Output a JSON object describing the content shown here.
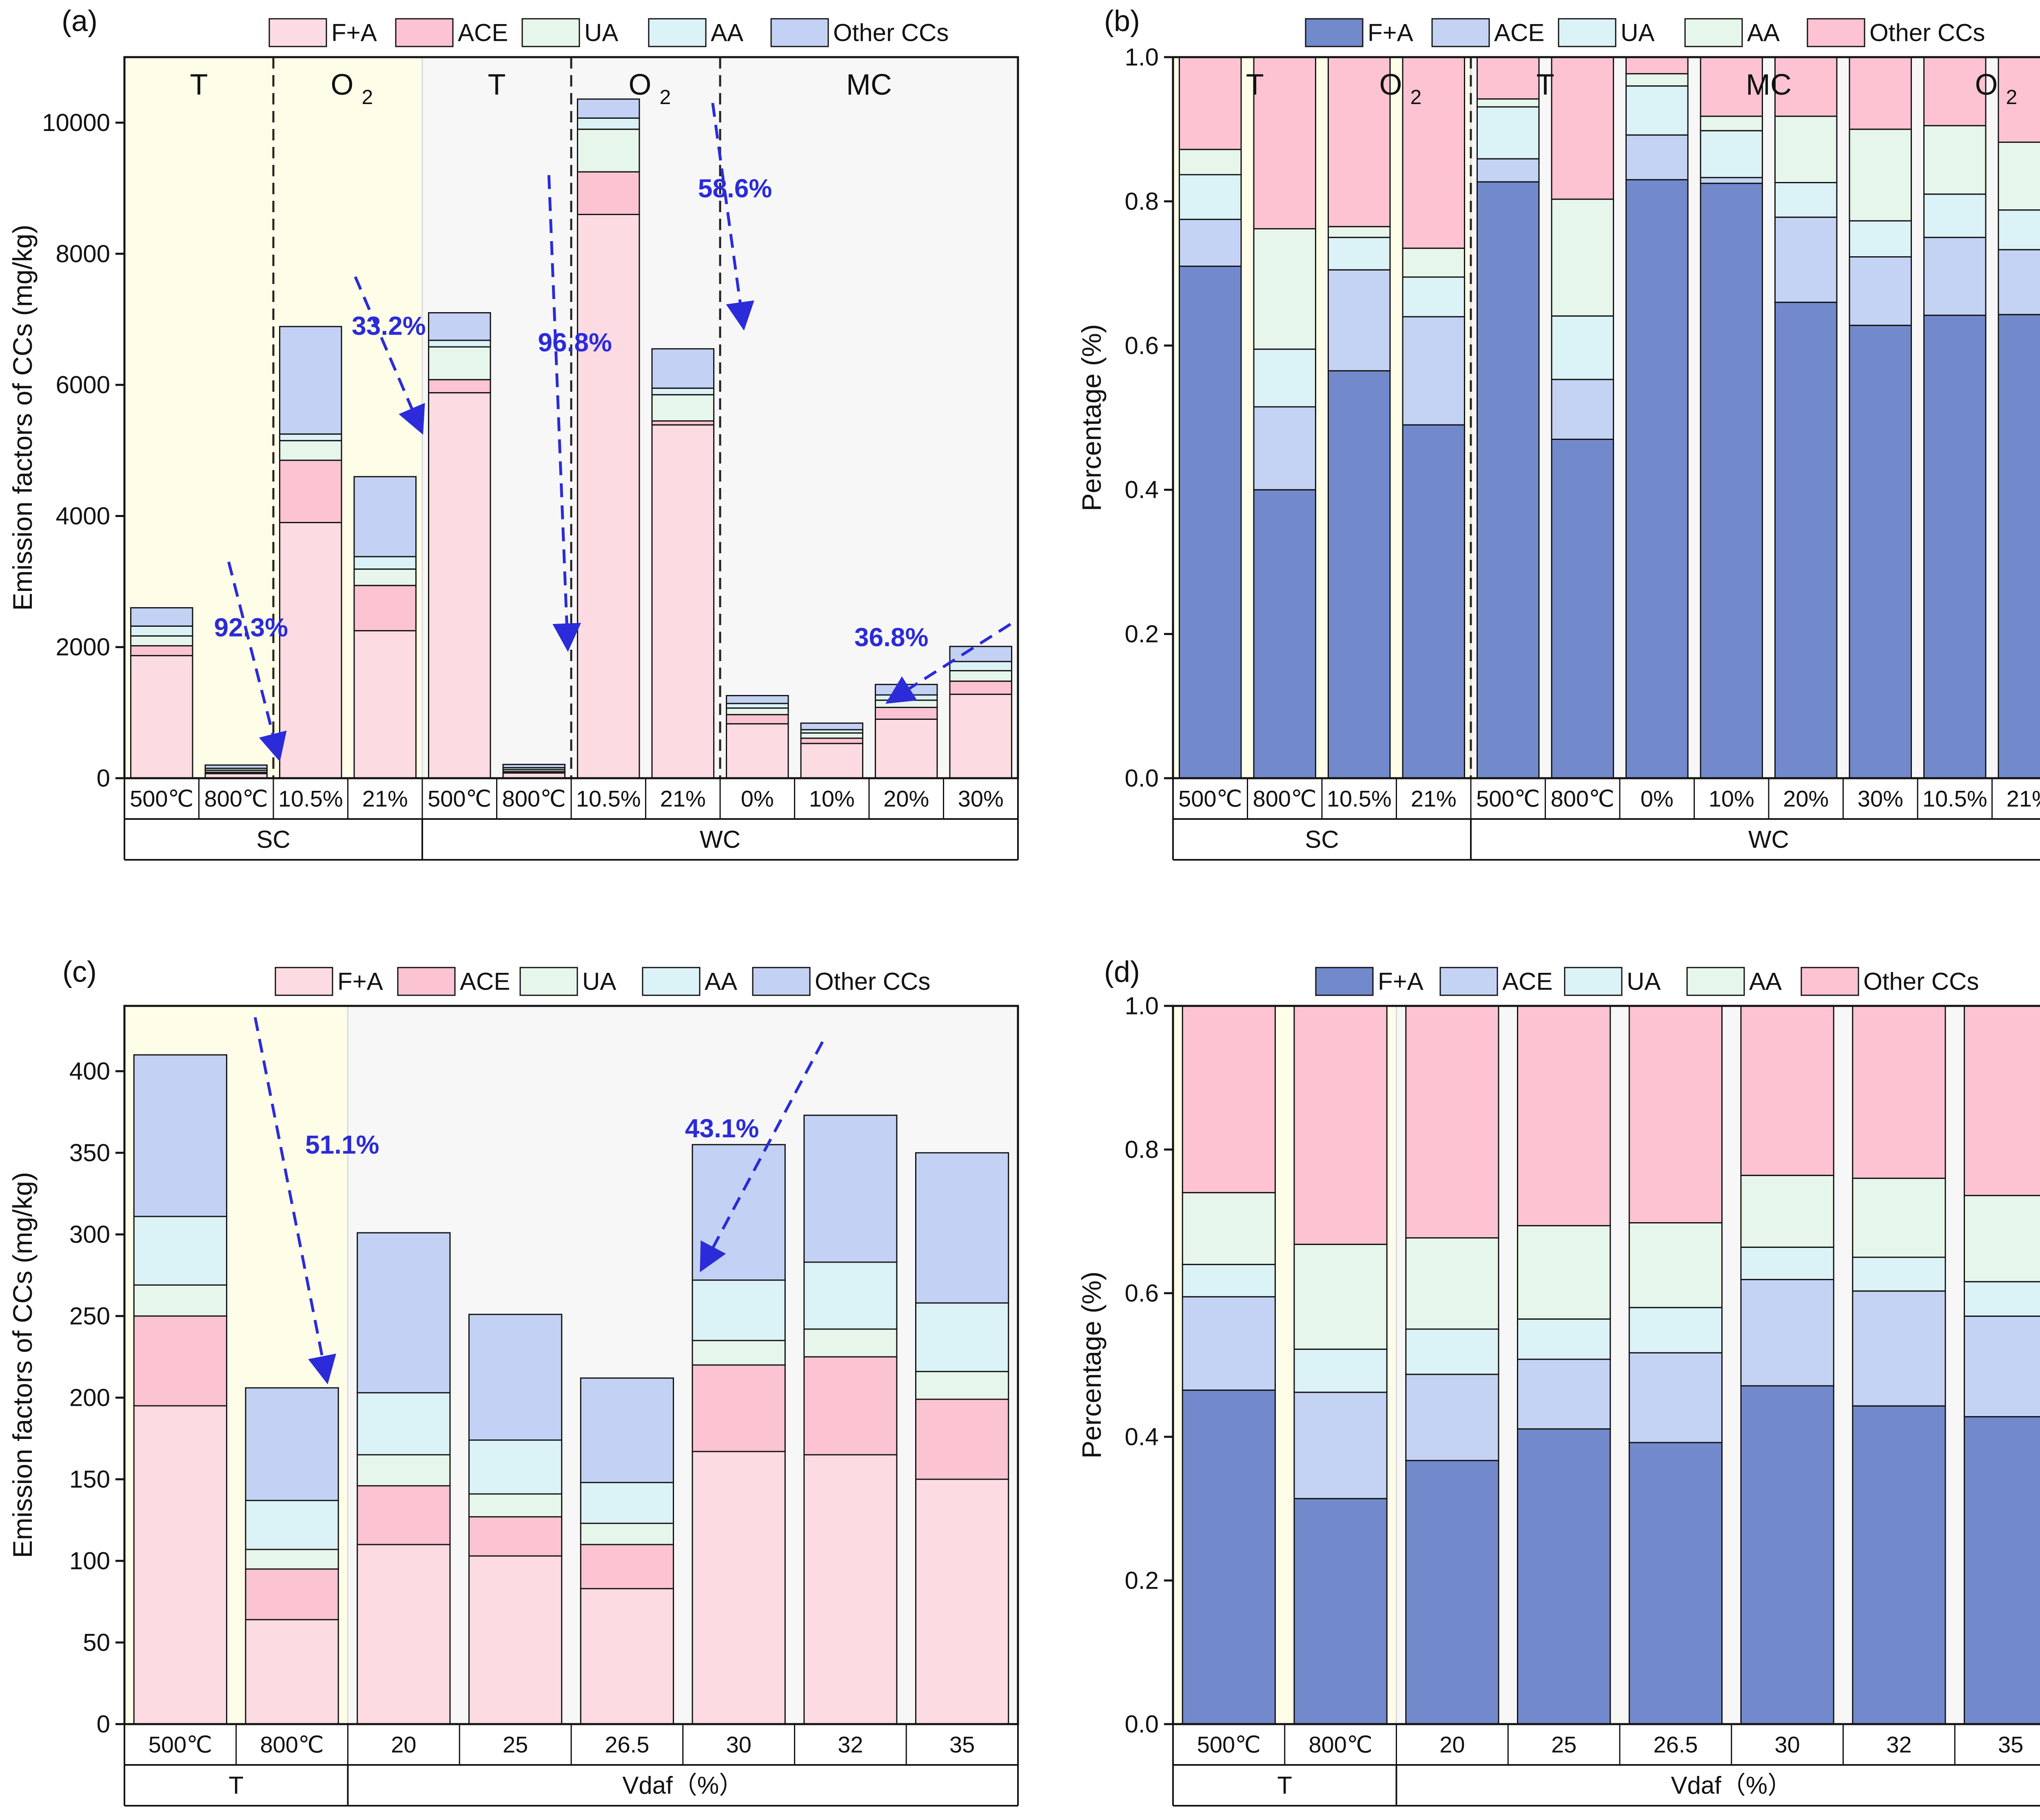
{
  "colors": {
    "panel_a": {
      "F+A": "#fddbe2",
      "ACE": "#fcc3d2",
      "UA": "#e7f6ea",
      "AA": "#dbf2f7",
      "Other CCs": "#c3d2f4"
    },
    "panel_b": {
      "F+A": "#7289cc",
      "ACE": "#c4d3f4",
      "UA": "#dbf2f7",
      "AA": "#e7f6ea",
      "Other CCs": "#fdc3d2"
    },
    "bg_yellow": "#fdfde8",
    "bg_gray": "#f7f7f7",
    "arrow": "#2b2bd9"
  },
  "chart_data": [
    {
      "id": "a",
      "panel_label": "(a)",
      "type": "bar",
      "stacked": true,
      "ylabel": "Emission factors of CCs (mg/kg)",
      "ylim": [
        0,
        11000
      ],
      "yticks": [
        0,
        2000,
        4000,
        6000,
        8000,
        10000
      ],
      "legend": [
        "F+A",
        "ACE",
        "UA",
        "AA",
        "Other CCs"
      ],
      "legend_position": "top",
      "categories": [
        "500℃",
        "800℃",
        "10.5%",
        "21%",
        "500℃",
        "800℃",
        "10.5%",
        "21%",
        "0%",
        "10%",
        "20%",
        "30%"
      ],
      "groups": [
        {
          "label": "SC",
          "start": 0,
          "end": 3
        },
        {
          "label": "WC",
          "start": 4,
          "end": 11
        }
      ],
      "regions": [
        {
          "label": "T",
          "start": 0,
          "end": 1,
          "bg": "yellow"
        },
        {
          "label": "O",
          "sub": "2",
          "start": 2,
          "end": 3,
          "bg": "yellow"
        },
        {
          "label": "T",
          "start": 4,
          "end": 5,
          "bg": "gray"
        },
        {
          "label": "O",
          "sub": "2",
          "start": 6,
          "end": 7,
          "bg": "gray"
        },
        {
          "label": "MC",
          "start": 8,
          "end": 11,
          "bg": "gray"
        }
      ],
      "dividers": [
        2,
        6,
        8
      ],
      "series": [
        {
          "name": "F+A",
          "values": [
            1870,
            70,
            3900,
            2250,
            5880,
            80,
            8600,
            5390,
            830,
            530,
            900,
            1280
          ]
        },
        {
          "name": "ACE",
          "values": [
            150,
            20,
            950,
            690,
            200,
            20,
            650,
            60,
            140,
            80,
            180,
            200
          ]
        },
        {
          "name": "UA",
          "values": [
            150,
            30,
            300,
            250,
            500,
            30,
            650,
            400,
            100,
            80,
            110,
            160
          ]
        },
        {
          "name": "AA",
          "values": [
            150,
            30,
            100,
            190,
            100,
            30,
            170,
            100,
            70,
            50,
            80,
            140
          ]
        },
        {
          "name": "Other CCs",
          "values": [
            280,
            50,
            1640,
            1220,
            420,
            50,
            290,
            600,
            120,
            100,
            160,
            230
          ]
        }
      ],
      "annotations": [
        {
          "text": "92.3%",
          "x": 1.2,
          "y": 2300,
          "x1": 0.9,
          "y1": 3300,
          "x2": 1.55,
          "y2": 420
        },
        {
          "text": "33.2%",
          "x": 3.05,
          "y": 6900,
          "x1": 2.6,
          "y1": 7650,
          "x2": 3.45,
          "y2": 5400
        },
        {
          "text": "96.8%",
          "x": 5.55,
          "y": 6650,
          "x1": 5.2,
          "y1": 9200,
          "x2": 5.45,
          "y2": 2100
        },
        {
          "text": "58.6%",
          "x": 7.7,
          "y": 9000,
          "x1": 7.4,
          "y1": 10300,
          "x2": 7.8,
          "y2": 7000
        },
        {
          "text": "36.8%",
          "x": 9.8,
          "y": 2150,
          "x1": 11.4,
          "y1": 2350,
          "x2": 9.85,
          "y2": 1230
        }
      ]
    },
    {
      "id": "b",
      "panel_label": "(b)",
      "type": "bar",
      "stacked": true,
      "ylabel": "Percentage (%)",
      "ylim": [
        0,
        1
      ],
      "yticks": [
        0.0,
        0.2,
        0.4,
        0.6,
        0.8,
        1.0
      ],
      "legend": [
        "F+A",
        "ACE",
        "UA",
        "AA",
        "Other CCs"
      ],
      "legend_position": "top",
      "categories": [
        "500℃",
        "800℃",
        "10.5%",
        "21%",
        "500℃",
        "800℃",
        "0%",
        "10%",
        "20%",
        "30%",
        "10.5%",
        "21%"
      ],
      "groups": [
        {
          "label": "SC",
          "start": 0,
          "end": 3
        },
        {
          "label": "WC",
          "start": 4,
          "end": 11
        }
      ],
      "regions": [
        {
          "label": "T",
          "start": 0,
          "end": 1,
          "bg": "yellow",
          "label_x": 0.6
        },
        {
          "label": "O",
          "sub": "2",
          "start": 2,
          "end": 3,
          "bg": "yellow",
          "label_x": 2.5
        },
        {
          "label": "T",
          "start": 4,
          "end": 5,
          "bg": "gray",
          "label_x": 4.5
        },
        {
          "label": "MC",
          "start": 6,
          "end": 9,
          "bg": "gray",
          "label_x": 7.5
        },
        {
          "label": "O",
          "sub": "2",
          "start": 10,
          "end": 11,
          "bg": "gray",
          "label_x": 10.5
        }
      ],
      "dividers": [
        4
      ],
      "series": [
        {
          "name": "F+A",
          "values": [
            0.71,
            0.4,
            0.565,
            0.49,
            0.827,
            0.47,
            0.83,
            0.825,
            0.66,
            0.628,
            0.642,
            0.643
          ]
        },
        {
          "name": "ACE",
          "values": [
            0.065,
            0.115,
            0.14,
            0.15,
            0.032,
            0.083,
            0.062,
            0.008,
            0.118,
            0.095,
            0.108,
            0.09
          ]
        },
        {
          "name": "UA",
          "values": [
            0.062,
            0.08,
            0.045,
            0.055,
            0.072,
            0.088,
            0.068,
            0.065,
            0.048,
            0.05,
            0.06,
            0.055
          ]
        },
        {
          "name": "AA",
          "values": [
            0.035,
            0.167,
            0.015,
            0.04,
            0.011,
            0.162,
            0.017,
            0.02,
            0.092,
            0.127,
            0.095,
            0.094
          ]
        },
        {
          "name": "Other CCs",
          "values": [
            0.128,
            0.238,
            0.235,
            0.265,
            0.058,
            0.197,
            0.023,
            0.082,
            0.082,
            0.1,
            0.095,
            0.118
          ]
        }
      ]
    },
    {
      "id": "c",
      "panel_label": "(c)",
      "type": "bar",
      "stacked": true,
      "ylabel": "Emission factors of CCs (mg/kg)",
      "ylim": [
        0,
        440
      ],
      "yticks": [
        0,
        50,
        100,
        150,
        200,
        250,
        300,
        350,
        400
      ],
      "legend": [
        "F+A",
        "ACE",
        "UA",
        "AA",
        "Other CCs"
      ],
      "legend_position": "top",
      "categories": [
        "500℃",
        "800℃",
        "20",
        "25",
        "26.5",
        "30",
        "32",
        "35"
      ],
      "groups": [
        {
          "label": "T",
          "start": 0,
          "end": 1
        },
        {
          "label": "Vdaf（%）",
          "start": 2,
          "end": 7
        }
      ],
      "regions": [
        {
          "label": "",
          "start": 0,
          "end": 1,
          "bg": "yellow"
        },
        {
          "label": "",
          "start": 2,
          "end": 7,
          "bg": "gray"
        }
      ],
      "dividers": [],
      "series": [
        {
          "name": "F+A",
          "values": [
            195,
            64,
            110,
            103,
            83,
            167,
            165,
            150
          ]
        },
        {
          "name": "ACE",
          "values": [
            55,
            31,
            36,
            24,
            27,
            53,
            60,
            49
          ]
        },
        {
          "name": "UA",
          "values": [
            19,
            12,
            19,
            14,
            13,
            15,
            17,
            17
          ]
        },
        {
          "name": "AA",
          "values": [
            42,
            30,
            38,
            33,
            25,
            37,
            41,
            42
          ]
        },
        {
          "name": "Other CCs",
          "values": [
            99,
            69,
            98,
            77,
            64,
            83,
            90,
            92
          ]
        }
      ],
      "annotations": [
        {
          "text": "51.1%",
          "x": 1.45,
          "y": 355,
          "x1": 0.67,
          "y1": 433,
          "x2": 1.3,
          "y2": 215
        },
        {
          "text": "43.1%",
          "x": 4.85,
          "y": 365,
          "x1": 5.75,
          "y1": 418,
          "x2": 4.7,
          "y2": 283
        }
      ]
    },
    {
      "id": "d",
      "panel_label": "(d)",
      "type": "bar",
      "stacked": true,
      "ylabel": "Percentage (%)",
      "ylim": [
        0,
        1
      ],
      "yticks": [
        0.0,
        0.2,
        0.4,
        0.6,
        0.8,
        1.0
      ],
      "legend": [
        "F+A",
        "ACE",
        "UA",
        "AA",
        "Other CCs"
      ],
      "legend_position": "top",
      "categories": [
        "500℃",
        "800℃",
        "20",
        "25",
        "26.5",
        "30",
        "32",
        "35"
      ],
      "groups": [
        {
          "label": "T",
          "start": 0,
          "end": 1
        },
        {
          "label": "Vdaf（%）",
          "start": 2,
          "end": 7
        }
      ],
      "regions": [
        {
          "label": "",
          "start": 0,
          "end": 1,
          "bg": "yellow"
        },
        {
          "label": "",
          "start": 2,
          "end": 7,
          "bg": "gray"
        }
      ],
      "dividers": [],
      "series": [
        {
          "name": "F+A",
          "values": [
            0.465,
            0.314,
            0.367,
            0.411,
            0.392,
            0.471,
            0.443,
            0.428
          ]
        },
        {
          "name": "ACE",
          "values": [
            0.13,
            0.148,
            0.12,
            0.097,
            0.125,
            0.148,
            0.16,
            0.14
          ]
        },
        {
          "name": "UA",
          "values": [
            0.045,
            0.06,
            0.063,
            0.056,
            0.063,
            0.045,
            0.047,
            0.048
          ]
        },
        {
          "name": "AA",
          "values": [
            0.1,
            0.146,
            0.127,
            0.13,
            0.118,
            0.1,
            0.11,
            0.12
          ]
        },
        {
          "name": "Other CCs",
          "values": [
            0.26,
            0.332,
            0.323,
            0.306,
            0.302,
            0.236,
            0.24,
            0.264
          ]
        }
      ]
    }
  ]
}
